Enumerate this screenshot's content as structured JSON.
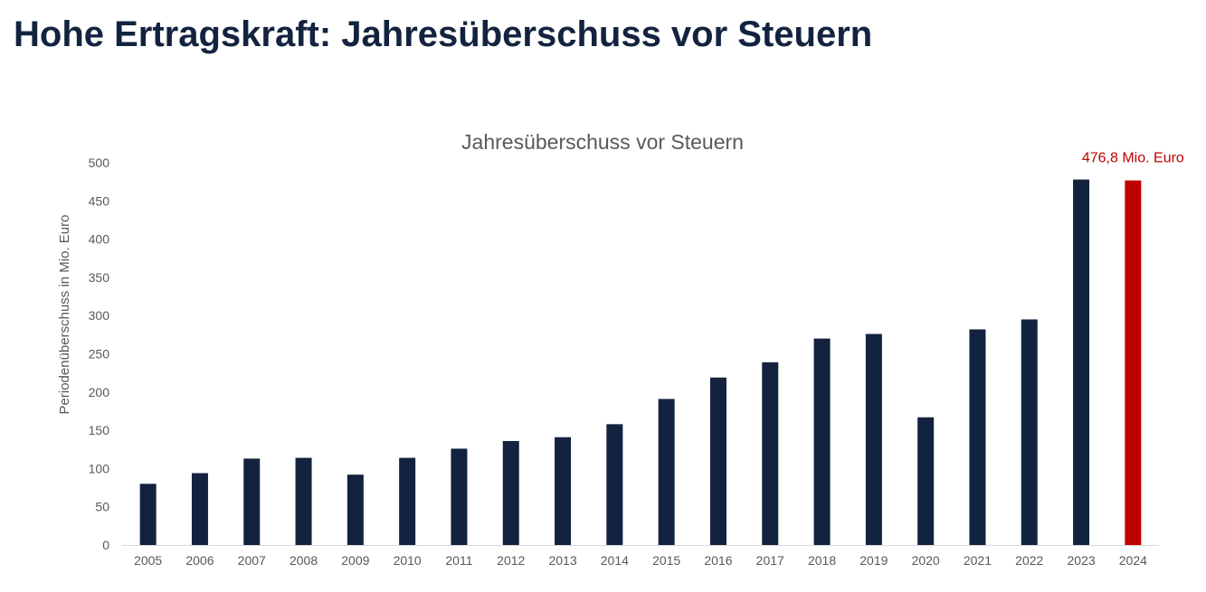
{
  "page": {
    "title": "Hohe Ertragskraft: Jahresüberschuss vor Steuern"
  },
  "colors": {
    "title": "#13233f",
    "bar": "#13233f",
    "highlight": "#c00000",
    "axis_text": "#595959",
    "axis_line": "#d9d9d9"
  },
  "chart_data": {
    "type": "bar",
    "title": "Jahresüberschuss vor Steuern",
    "xlabel": "",
    "ylabel": "Periodenüberschuss in Mio. Euro",
    "categories": [
      "2005",
      "2006",
      "2007",
      "2008",
      "2009",
      "2010",
      "2011",
      "2012",
      "2013",
      "2014",
      "2015",
      "2016",
      "2017",
      "2018",
      "2019",
      "2020",
      "2021",
      "2022",
      "2023",
      "2024"
    ],
    "values": [
      80,
      94,
      113,
      114,
      92,
      114,
      126,
      136,
      141,
      158,
      191,
      219,
      239,
      270,
      276,
      167,
      282,
      295,
      478,
      476.8
    ],
    "ylim": [
      0,
      500
    ],
    "yticks": [
      0,
      50,
      100,
      150,
      200,
      250,
      300,
      350,
      400,
      450,
      500
    ],
    "ytick_labels": [
      "0",
      "50",
      "100",
      "150",
      "200",
      "250",
      "300",
      "350",
      "400",
      "450",
      "500"
    ],
    "grid": false,
    "legend": "none",
    "highlight_index": 19,
    "annotation": "476,8 Mio. Euro"
  }
}
